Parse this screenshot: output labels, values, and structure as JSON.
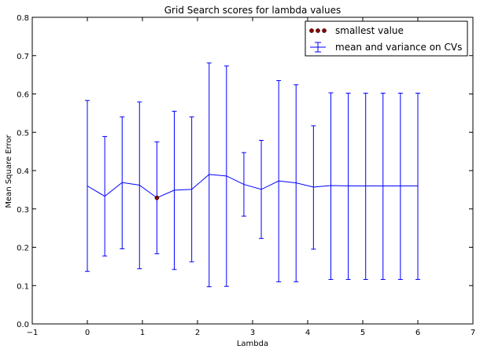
{
  "chart_data": {
    "type": "line",
    "title": "Grid Search scores for lambda values",
    "xlabel": "Lambda",
    "ylabel": "Mean Square Error",
    "xlim": [
      -1,
      7
    ],
    "ylim": [
      0,
      0.8
    ],
    "xticks": [
      -1,
      0,
      1,
      2,
      3,
      4,
      5,
      6,
      7
    ],
    "yticks": [
      0.0,
      0.1,
      0.2,
      0.3,
      0.4,
      0.5,
      0.6,
      0.7,
      0.8
    ],
    "xtick_labels": [
      "−1",
      "0",
      "1",
      "2",
      "3",
      "4",
      "5",
      "6",
      "7"
    ],
    "ytick_labels": [
      "0.0",
      "0.1",
      "0.2",
      "0.3",
      "0.4",
      "0.5",
      "0.6",
      "0.7",
      "0.8"
    ],
    "grid": false,
    "legend_position": "top-right",
    "series": [
      {
        "name": "mean and variance on CVs",
        "color": "#0000ff",
        "x": [
          0,
          0.316,
          0.632,
          0.947,
          1.263,
          1.579,
          1.895,
          2.211,
          2.526,
          2.842,
          3.158,
          3.474,
          3.789,
          4.105,
          4.421,
          4.737,
          5.053,
          5.368,
          5.684,
          6.0
        ],
        "y": [
          0.36,
          0.333,
          0.369,
          0.362,
          0.329,
          0.349,
          0.351,
          0.39,
          0.386,
          0.364,
          0.351,
          0.373,
          0.368,
          0.357,
          0.361,
          0.36,
          0.36,
          0.36,
          0.36,
          0.36
        ],
        "err_low": [
          0.137,
          0.177,
          0.196,
          0.144,
          0.183,
          0.142,
          0.162,
          0.097,
          0.098,
          0.281,
          0.223,
          0.11,
          0.11,
          0.195,
          0.116,
          0.116,
          0.116,
          0.116,
          0.116,
          0.116
        ],
        "err_high": [
          0.583,
          0.489,
          0.54,
          0.579,
          0.475,
          0.555,
          0.54,
          0.681,
          0.673,
          0.447,
          0.479,
          0.635,
          0.624,
          0.517,
          0.603,
          0.602,
          0.602,
          0.602,
          0.602,
          0.602
        ]
      },
      {
        "name": "smallest value",
        "type": "scatter",
        "color": "#8b0000",
        "x": [
          1.263
        ],
        "y": [
          0.329
        ]
      }
    ]
  }
}
